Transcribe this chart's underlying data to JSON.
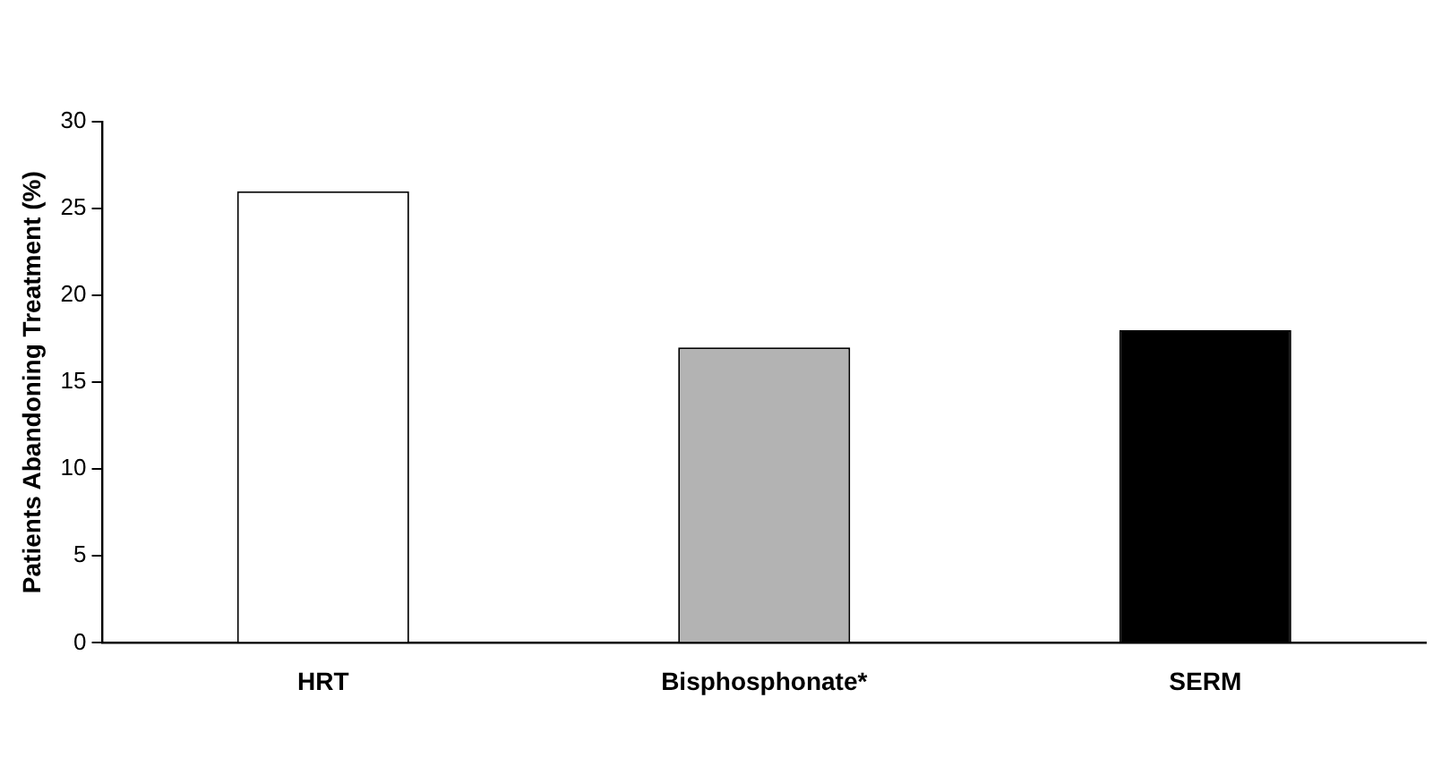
{
  "chart_data": {
    "type": "bar",
    "ylabel": "Patients Abandoning Treatment (%)",
    "categories": [
      "HRT",
      "Bisphosphonate*",
      "SERM"
    ],
    "values": [
      26,
      17,
      18
    ],
    "colors": [
      "#ffffff",
      "#b3b3b3",
      "#000000"
    ],
    "ylim": [
      0,
      30
    ],
    "yticks": [
      0,
      5,
      10,
      15,
      20,
      25,
      30
    ],
    "grid": false,
    "legend": false
  }
}
